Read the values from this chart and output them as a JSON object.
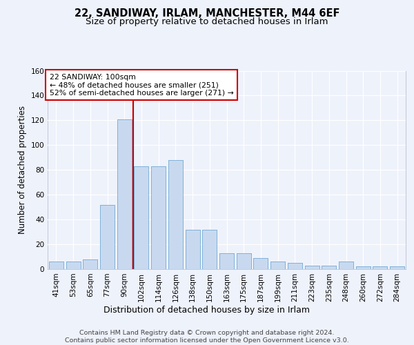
{
  "title_line1": "22, SANDIWAY, IRLAM, MANCHESTER, M44 6EF",
  "title_line2": "Size of property relative to detached houses in Irlam",
  "xlabel": "Distribution of detached houses by size in Irlam",
  "ylabel": "Number of detached properties",
  "categories": [
    "41sqm",
    "53sqm",
    "65sqm",
    "77sqm",
    "90sqm",
    "102sqm",
    "114sqm",
    "126sqm",
    "138sqm",
    "150sqm",
    "163sqm",
    "175sqm",
    "187sqm",
    "199sqm",
    "211sqm",
    "223sqm",
    "235sqm",
    "248sqm",
    "260sqm",
    "272sqm",
    "284sqm"
  ],
  "values": [
    6,
    6,
    8,
    52,
    121,
    83,
    83,
    88,
    32,
    32,
    13,
    13,
    9,
    6,
    5,
    3,
    3,
    6,
    2,
    2,
    2
  ],
  "bar_color": "#c8d9ef",
  "bar_edge_color": "#7aaed6",
  "vline_color": "#cc0000",
  "ylim": [
    0,
    160
  ],
  "yticks": [
    0,
    20,
    40,
    60,
    80,
    100,
    120,
    140,
    160
  ],
  "annotation_text": "22 SANDIWAY: 100sqm\n← 48% of detached houses are smaller (251)\n52% of semi-detached houses are larger (271) →",
  "annotation_box_color": "#ffffff",
  "annotation_box_edge": "#cc0000",
  "footer_text": "Contains HM Land Registry data © Crown copyright and database right 2024.\nContains public sector information licensed under the Open Government Licence v3.0.",
  "background_color": "#eef2fb",
  "grid_color": "#ffffff",
  "title_fontsize": 10.5,
  "subtitle_fontsize": 9.5,
  "tick_fontsize": 7.5,
  "ylabel_fontsize": 8.5,
  "xlabel_fontsize": 9,
  "annotation_fontsize": 7.8,
  "footer_fontsize": 6.8
}
